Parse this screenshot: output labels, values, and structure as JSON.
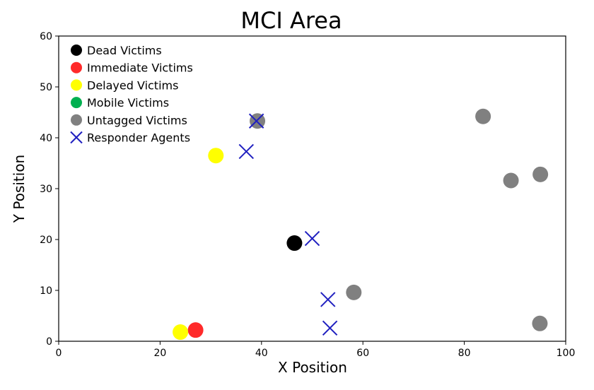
{
  "chart_data": {
    "type": "scatter",
    "title": "MCI Area",
    "xlabel": "X Position",
    "ylabel": "Y Position",
    "xlim": [
      0,
      100
    ],
    "ylim": [
      0,
      60
    ],
    "x_ticks": [
      0,
      20,
      40,
      60,
      80,
      100
    ],
    "y_ticks": [
      0,
      10,
      20,
      30,
      40,
      50,
      60
    ],
    "grid": false,
    "legend_position": "top-left",
    "series": [
      {
        "name": "Dead Victims",
        "marker": "circle",
        "color": "#000000",
        "points": [
          [
            46.5,
            19.3
          ]
        ]
      },
      {
        "name": "Immediate Victims",
        "marker": "circle",
        "color": "#ff2a2a",
        "points": [
          [
            27.0,
            2.2
          ]
        ]
      },
      {
        "name": "Delayed Victims",
        "marker": "circle",
        "color": "#ffff00",
        "points": [
          [
            24.0,
            1.8
          ],
          [
            31.0,
            36.5
          ]
        ]
      },
      {
        "name": "Mobile Victims",
        "marker": "circle",
        "color": "#00b050",
        "points": []
      },
      {
        "name": "Untagged Victims",
        "marker": "circle",
        "color": "#808080",
        "points": [
          [
            39.2,
            43.3
          ],
          [
            58.2,
            9.6
          ],
          [
            83.7,
            44.2
          ],
          [
            89.2,
            31.6
          ],
          [
            95.0,
            32.8
          ],
          [
            94.9,
            3.5
          ]
        ]
      },
      {
        "name": "Responder Agents",
        "marker": "x",
        "color": "#2020c0",
        "points": [
          [
            39.0,
            43.3
          ],
          [
            37.0,
            37.3
          ],
          [
            50.0,
            20.2
          ],
          [
            53.1,
            8.2
          ],
          [
            53.5,
            2.6
          ]
        ]
      }
    ]
  }
}
